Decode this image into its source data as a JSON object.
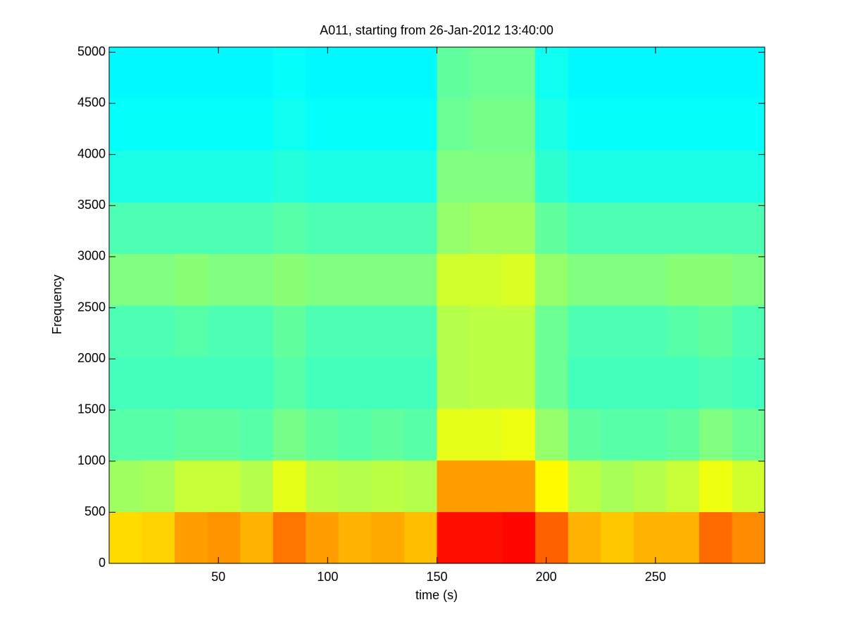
{
  "chart_data": {
    "type": "heatmap",
    "title": "A011, starting from 26-Jan-2012 13:40:00",
    "x_label": "time (s)",
    "y_label": "Frequency",
    "colormap": "jet",
    "clim": [
      0,
      1
    ],
    "xlim": [
      0,
      300
    ],
    "ylim": [
      0,
      5050
    ],
    "xticks": [
      50,
      100,
      150,
      200,
      250
    ],
    "yticks": [
      0,
      500,
      1000,
      1500,
      2000,
      2500,
      3000,
      3500,
      4000,
      4500,
      5000
    ],
    "xbins": [
      0,
      15,
      30,
      45,
      60,
      75,
      90,
      105,
      120,
      135,
      150,
      165,
      180,
      195,
      210,
      225,
      240,
      255,
      270,
      285,
      300
    ],
    "ybins": [
      0,
      505,
      1010,
      1515,
      2020,
      2525,
      3030,
      3535,
      4040,
      4545,
      5050
    ],
    "values": [
      [
        0.66,
        0.67,
        0.72,
        0.73,
        0.7,
        0.76,
        0.72,
        0.7,
        0.71,
        0.69,
        0.86,
        0.86,
        0.87,
        0.78,
        0.7,
        0.68,
        0.7,
        0.7,
        0.77,
        0.74
      ],
      [
        0.53,
        0.54,
        0.57,
        0.57,
        0.55,
        0.6,
        0.56,
        0.55,
        0.56,
        0.55,
        0.72,
        0.72,
        0.72,
        0.63,
        0.56,
        0.54,
        0.55,
        0.57,
        0.61,
        0.58
      ],
      [
        0.46,
        0.46,
        0.47,
        0.47,
        0.46,
        0.49,
        0.47,
        0.46,
        0.47,
        0.46,
        0.6,
        0.6,
        0.61,
        0.52,
        0.47,
        0.46,
        0.46,
        0.47,
        0.5,
        0.48
      ],
      [
        0.44,
        0.44,
        0.44,
        0.44,
        0.44,
        0.46,
        0.44,
        0.44,
        0.44,
        0.44,
        0.55,
        0.56,
        0.56,
        0.48,
        0.44,
        0.44,
        0.44,
        0.44,
        0.45,
        0.44
      ],
      [
        0.45,
        0.45,
        0.46,
        0.45,
        0.45,
        0.47,
        0.45,
        0.45,
        0.45,
        0.45,
        0.55,
        0.56,
        0.56,
        0.48,
        0.45,
        0.45,
        0.45,
        0.46,
        0.47,
        0.45
      ],
      [
        0.5,
        0.5,
        0.51,
        0.5,
        0.5,
        0.51,
        0.5,
        0.5,
        0.5,
        0.5,
        0.58,
        0.58,
        0.59,
        0.52,
        0.5,
        0.5,
        0.5,
        0.51,
        0.51,
        0.5
      ],
      [
        0.45,
        0.45,
        0.45,
        0.45,
        0.45,
        0.46,
        0.45,
        0.45,
        0.45,
        0.45,
        0.52,
        0.53,
        0.53,
        0.47,
        0.45,
        0.45,
        0.45,
        0.45,
        0.45,
        0.45
      ],
      [
        0.4,
        0.4,
        0.4,
        0.4,
        0.4,
        0.41,
        0.4,
        0.4,
        0.4,
        0.4,
        0.5,
        0.5,
        0.5,
        0.42,
        0.4,
        0.4,
        0.4,
        0.4,
        0.4,
        0.4
      ],
      [
        0.38,
        0.38,
        0.38,
        0.38,
        0.38,
        0.39,
        0.38,
        0.38,
        0.38,
        0.38,
        0.48,
        0.49,
        0.49,
        0.4,
        0.38,
        0.38,
        0.38,
        0.38,
        0.38,
        0.38
      ],
      [
        0.37,
        0.37,
        0.37,
        0.37,
        0.37,
        0.38,
        0.37,
        0.37,
        0.37,
        0.37,
        0.47,
        0.48,
        0.48,
        0.39,
        0.37,
        0.37,
        0.37,
        0.37,
        0.37,
        0.37
      ]
    ]
  }
}
